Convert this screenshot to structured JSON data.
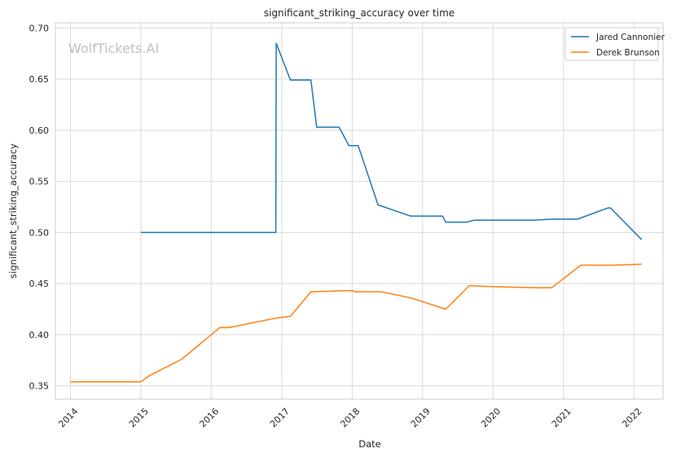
{
  "chart_data": {
    "type": "line",
    "title": "significant_striking_accuracy over time",
    "xlabel": "Date",
    "ylabel": "significant_striking_accuracy",
    "watermark": "WolfTickets.AI",
    "xlim": [
      "2013-10-15",
      "2022-06-01"
    ],
    "ylim": [
      0.337,
      0.705
    ],
    "x_ticks": [
      "2014-01-01",
      "2015-01-01",
      "2016-01-01",
      "2017-01-01",
      "2018-01-01",
      "2019-01-01",
      "2020-01-01",
      "2021-01-01",
      "2022-01-01"
    ],
    "x_tick_labels": [
      "2014",
      "2015",
      "2016",
      "2017",
      "2018",
      "2019",
      "2020",
      "2021",
      "2022"
    ],
    "y_ticks": [
      0.35,
      0.4,
      0.45,
      0.5,
      0.55,
      0.6,
      0.65,
      0.7
    ],
    "y_tick_labels": [
      "0.35",
      "0.40",
      "0.45",
      "0.50",
      "0.55",
      "0.60",
      "0.65",
      "0.70"
    ],
    "grid": true,
    "legend_position": "top-right",
    "series": [
      {
        "name": "Jared Cannonier",
        "color": "#1f77b4",
        "points": [
          [
            "2015-01-01",
            0.5
          ],
          [
            "2016-12-01",
            0.5
          ],
          [
            "2016-12-03",
            0.685
          ],
          [
            "2017-02-15",
            0.649
          ],
          [
            "2017-06-01",
            0.649
          ],
          [
            "2017-07-01",
            0.603
          ],
          [
            "2017-10-25",
            0.603
          ],
          [
            "2017-12-15",
            0.585
          ],
          [
            "2018-02-01",
            0.585
          ],
          [
            "2018-05-15",
            0.527
          ],
          [
            "2018-11-01",
            0.516
          ],
          [
            "2019-04-15",
            0.516
          ],
          [
            "2019-05-01",
            0.51
          ],
          [
            "2019-08-15",
            0.51
          ],
          [
            "2019-09-25",
            0.512
          ],
          [
            "2020-08-01",
            0.512
          ],
          [
            "2020-11-01",
            0.513
          ],
          [
            "2021-03-15",
            0.513
          ],
          [
            "2021-08-20",
            0.524
          ],
          [
            "2021-09-01",
            0.524
          ],
          [
            "2022-02-10",
            0.493
          ]
        ]
      },
      {
        "name": "Derek Brunson",
        "color": "#ff7f0e",
        "points": [
          [
            "2014-01-01",
            0.354
          ],
          [
            "2015-01-01",
            0.354
          ],
          [
            "2015-02-15",
            0.36
          ],
          [
            "2015-08-01",
            0.376
          ],
          [
            "2016-02-15",
            0.407
          ],
          [
            "2016-04-01",
            0.407
          ],
          [
            "2016-11-25",
            0.416
          ],
          [
            "2017-02-15",
            0.418
          ],
          [
            "2017-06-01",
            0.442
          ],
          [
            "2017-11-15",
            0.443
          ],
          [
            "2018-01-01",
            0.443
          ],
          [
            "2018-01-20",
            0.442
          ],
          [
            "2018-06-01",
            0.442
          ],
          [
            "2018-11-01",
            0.436
          ],
          [
            "2019-05-01",
            0.425
          ],
          [
            "2019-09-01",
            0.448
          ],
          [
            "2020-01-01",
            0.447
          ],
          [
            "2020-08-15",
            0.446
          ],
          [
            "2020-11-01",
            0.446
          ],
          [
            "2021-04-01",
            0.468
          ],
          [
            "2021-09-01",
            0.468
          ],
          [
            "2021-09-20",
            0.468
          ],
          [
            "2022-02-10",
            0.469
          ]
        ]
      }
    ]
  }
}
